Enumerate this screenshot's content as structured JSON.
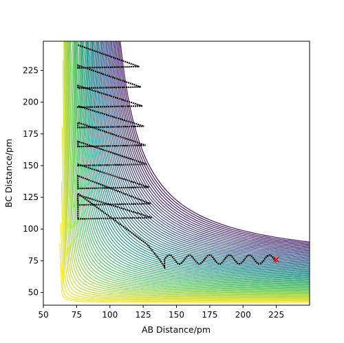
{
  "chart_data": {
    "type": "contour",
    "title": "",
    "xlabel": "AB Distance/pm",
    "ylabel": "BC Distance/pm",
    "xlim": [
      50,
      250
    ],
    "ylim": [
      40,
      248
    ],
    "xticks": [
      "50",
      "75",
      "100",
      "125",
      "150",
      "175",
      "200",
      "225"
    ],
    "yticks": [
      "50",
      "75",
      "100",
      "125",
      "150",
      "175",
      "200",
      "225"
    ],
    "xtick_values": [
      50,
      75,
      100,
      125,
      150,
      175,
      200,
      225
    ],
    "ytick_values": [
      50,
      75,
      100,
      125,
      150,
      175,
      200,
      225
    ],
    "colormap": [
      "#440154",
      "#3b528b",
      "#21918c",
      "#5ec962",
      "#fde725"
    ],
    "contour_levels": 60,
    "grid": false,
    "trajectory": {
      "color": "#000000",
      "start": {
        "x": 76,
        "y": 245
      },
      "zigzag_rows": [
        {
          "y_top": 245,
          "y_bottom": 228
        },
        {
          "y_top": 229,
          "y_bottom": 212
        },
        {
          "y_top": 213,
          "y_bottom": 197
        },
        {
          "y_top": 197,
          "y_bottom": 181
        },
        {
          "y_top": 184,
          "y_bottom": 166
        },
        {
          "y_top": 169,
          "y_bottom": 151
        },
        {
          "y_top": 151,
          "y_bottom": 133
        },
        {
          "y_top": 142,
          "y_bottom": 120
        },
        {
          "y_top": 127,
          "y_bottom": 109
        }
      ],
      "exit_points": [
        {
          "x": 76,
          "y": 128
        },
        {
          "x": 110,
          "y": 102
        },
        {
          "x": 128,
          "y": 88
        },
        {
          "x": 138,
          "y": 75
        },
        {
          "x": 141,
          "y": 70
        }
      ],
      "oscillation": {
        "x_start": 141,
        "x_end": 225,
        "y_center": 76,
        "amplitude": 3.5,
        "period": 15
      }
    },
    "end_marker": {
      "x": 225,
      "y": 76,
      "symbol": "x",
      "color": "#ff0000"
    }
  }
}
